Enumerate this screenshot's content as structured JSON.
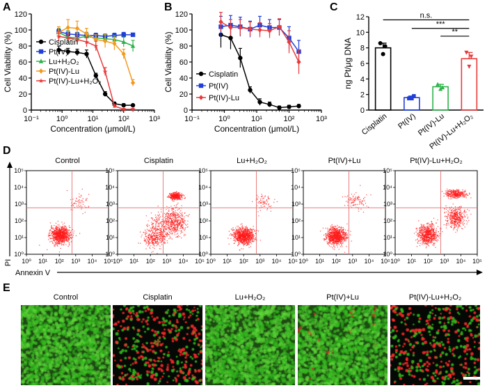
{
  "panel_letters": {
    "A": "A",
    "B": "B",
    "C": "C",
    "D": "D",
    "E": "E"
  },
  "colors": {
    "black": "#000000",
    "blue": "#1f3fd8",
    "green": "#2db34a",
    "orange": "#f39a1e",
    "red": "#e83a3a",
    "dot": "#ff1a1a",
    "gate": "#e46c6c",
    "live": "#31b81c",
    "dead": "#ff2a2a"
  },
  "chart_data": [
    {
      "id": "A",
      "type": "line",
      "xscale": "log",
      "xlim": [
        0.1,
        1000
      ],
      "ylim": [
        0,
        120
      ],
      "xlabel": "Concentration (μmol/L)",
      "ylabel": "Cell Viability (%)",
      "xticks": [
        0.1,
        1,
        10,
        100,
        1000
      ],
      "xtick_labels": [
        "10⁻¹",
        "10⁰",
        "10¹",
        "10²",
        "10³"
      ],
      "yticks": [
        0,
        20,
        40,
        60,
        80,
        100,
        120
      ],
      "legend_position": "top-left",
      "series": [
        {
          "name": "Cisplatin",
          "color_key": "black",
          "marker": "circle",
          "x": [
            0.78,
            1.56,
            3.1,
            6.25,
            12.5,
            25,
            50,
            100,
            200
          ],
          "y": [
            75,
            73,
            72,
            70,
            43,
            20,
            8,
            6,
            6
          ],
          "err": [
            5,
            4,
            4,
            5,
            3,
            3,
            2,
            2,
            1
          ]
        },
        {
          "name": "Pt(IV)",
          "color_key": "blue",
          "marker": "square",
          "x": [
            0.78,
            1.56,
            3.1,
            6.25,
            12.5,
            25,
            50,
            100,
            200
          ],
          "y": [
            98,
            95,
            94,
            93,
            93,
            92,
            93,
            94,
            94
          ],
          "err": [
            3,
            4,
            3,
            4,
            3,
            3,
            3,
            3,
            2
          ]
        },
        {
          "name": "Lu+H₂O₂",
          "color_key": "green",
          "marker": "triangle",
          "x": [
            0.78,
            1.56,
            3.1,
            6.25,
            12.5,
            25,
            50,
            100,
            200
          ],
          "y": [
            97,
            91,
            90,
            92,
            90,
            89,
            88,
            85,
            80
          ],
          "err": [
            5,
            8,
            6,
            5,
            4,
            6,
            5,
            6,
            7
          ]
        },
        {
          "name": "Pt(IV)-Lu",
          "color_key": "orange",
          "marker": "diamond",
          "x": [
            0.78,
            1.56,
            3.1,
            6.25,
            12.5,
            25,
            50,
            100,
            200
          ],
          "y": [
            97,
            103,
            102,
            95,
            88,
            86,
            83,
            70,
            34
          ],
          "err": [
            7,
            10,
            9,
            7,
            6,
            8,
            8,
            6,
            4
          ]
        },
        {
          "name": "Pt(IV)-Lu+H₂O₂",
          "color_key": "red",
          "marker": "star",
          "x": [
            0.78,
            1.56,
            3.1,
            6.25,
            12.5,
            25,
            50,
            100,
            200
          ],
          "y": [
            92,
            90,
            88,
            85,
            80,
            48,
            5,
            1,
            1
          ],
          "err": [
            6,
            5,
            5,
            6,
            6,
            5,
            2,
            1,
            1
          ]
        }
      ]
    },
    {
      "id": "B",
      "type": "line",
      "xscale": "log",
      "xlim": [
        0.1,
        1000
      ],
      "ylim": [
        0,
        120
      ],
      "xlabel": "Concentration (μmol/L)",
      "ylabel": "Cell Viability (%)",
      "xticks": [
        0.1,
        1,
        10,
        100,
        1000
      ],
      "xtick_labels": [
        "10⁻¹",
        "10⁰",
        "10¹",
        "10²",
        "10³"
      ],
      "yticks": [
        0,
        20,
        40,
        60,
        80,
        100,
        120
      ],
      "legend_position": "middle-left",
      "series": [
        {
          "name": "Cisplatin",
          "color_key": "black",
          "marker": "circle",
          "x": [
            0.78,
            1.56,
            3.1,
            6.25,
            12.5,
            25,
            50,
            100,
            200
          ],
          "y": [
            94,
            90,
            65,
            25,
            10,
            7,
            3,
            4,
            5
          ],
          "err": [
            16,
            14,
            12,
            4,
            4,
            3,
            2,
            2,
            2
          ]
        },
        {
          "name": "Pt(IV)",
          "color_key": "blue",
          "marker": "square",
          "x": [
            0.78,
            1.56,
            3.1,
            6.25,
            12.5,
            25,
            50,
            100,
            200
          ],
          "y": [
            104,
            106,
            104,
            101,
            106,
            103,
            103,
            90,
            73
          ],
          "err": [
            13,
            12,
            12,
            10,
            11,
            10,
            10,
            14,
            14
          ]
        },
        {
          "name": "Pt(IV)-Lu",
          "color_key": "red",
          "marker": "diamond",
          "x": [
            0.78,
            1.56,
            3.1,
            6.25,
            12.5,
            25,
            50,
            100,
            200
          ],
          "y": [
            110,
            103,
            103,
            101,
            100,
            99,
            104,
            85,
            60
          ],
          "err": [
            12,
            10,
            10,
            9,
            9,
            9,
            10,
            14,
            15
          ]
        }
      ]
    },
    {
      "id": "C",
      "type": "bar",
      "ylabel": "ng Pt/μg DNA",
      "ylim": [
        0,
        12
      ],
      "yticks": [
        0,
        2,
        4,
        6,
        8,
        10,
        12
      ],
      "categories": [
        "Cisplatin",
        "Pt(IV)",
        "Pt(IV)-Lu",
        "Pt(IV)-Lu+H₂O₂"
      ],
      "values": [
        8.0,
        1.6,
        3.0,
        6.6
      ],
      "errors": [
        0.6,
        0.2,
        0.3,
        0.8
      ],
      "bar_color_keys": [
        "black",
        "blue",
        "green",
        "red"
      ],
      "points": [
        [
          8.6,
          8.2,
          7.2
        ],
        [
          1.5,
          1.8,
          1.5
        ],
        [
          3.3,
          2.9,
          2.7
        ],
        [
          7.4,
          6.9,
          5.6
        ]
      ],
      "significance": [
        {
          "from": 0,
          "to": 3,
          "label": "n.s.",
          "y": 11.6
        },
        {
          "from": 1,
          "to": 3,
          "label": "***",
          "y": 10.5
        },
        {
          "from": 2,
          "to": 3,
          "label": "**",
          "y": 9.5
        }
      ]
    },
    {
      "id": "D",
      "type": "scatter",
      "xlabel": "Annexin V",
      "ylabel": "PI",
      "xscale": "log",
      "yscale": "log",
      "xlim": [
        1,
        100000
      ],
      "ylim": [
        1,
        100000
      ],
      "tick_exps": [
        0,
        1,
        2,
        3,
        4,
        5
      ],
      "tick_labels": [
        "10⁰",
        "10¹",
        "10²",
        "10³",
        "10⁴",
        "10⁵"
      ],
      "gate_x": 600,
      "gate_y": 600,
      "panels": [
        {
          "title": "Control",
          "clusters": [
            [
              120,
              14,
              0.3,
              0.25,
              900
            ],
            [
              1500,
              1200,
              0.35,
              0.3,
              60
            ]
          ]
        },
        {
          "title": "Cisplatin",
          "clusters": [
            [
              200,
              10,
              0.35,
              0.3,
              320
            ],
            [
              3500,
              3000,
              0.2,
              0.1,
              350
            ],
            [
              3000,
              80,
              0.35,
              0.4,
              450
            ],
            [
              300,
              60,
              0.4,
              0.4,
              150
            ]
          ]
        },
        {
          "title": "Lu+H₂O₂",
          "clusters": [
            [
              100,
              12,
              0.3,
              0.25,
              850
            ],
            [
              1500,
              1500,
              0.3,
              0.25,
              70
            ]
          ]
        },
        {
          "title": "Pt(IV)+Lu",
          "clusters": [
            [
              100,
              12,
              0.3,
              0.25,
              850
            ],
            [
              1500,
              1500,
              0.35,
              0.3,
              90
            ]
          ]
        },
        {
          "title": "Pt(IV)-Lu+H₂O₂",
          "clusters": [
            [
              100,
              15,
              0.3,
              0.3,
              650
            ],
            [
              5000,
              4000,
              0.3,
              0.12,
              320
            ],
            [
              5000,
              150,
              0.3,
              0.3,
              400
            ]
          ]
        }
      ]
    }
  ],
  "fluorescence": {
    "titles": [
      "Control",
      "Cisplatin",
      "Lu+H₂O₂",
      "Pt(IV)+Lu",
      "Pt(IV)-Lu+H₂O₂"
    ],
    "dead_fraction": [
      0.0,
      0.55,
      0.0,
      0.02,
      0.5
    ]
  }
}
